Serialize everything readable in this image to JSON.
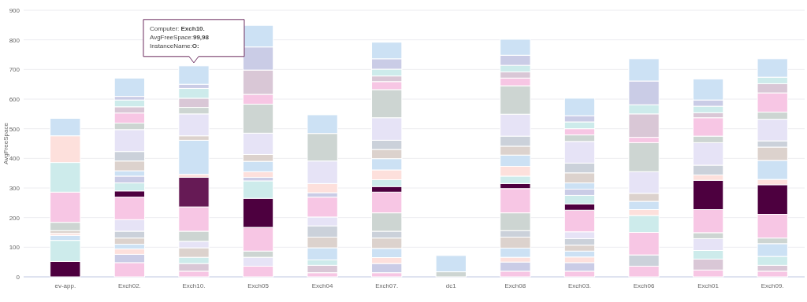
{
  "chart_data": {
    "type": "bar",
    "stacked": true,
    "ylabel": "AvgFreeSpace",
    "ylim": [
      0,
      900
    ],
    "yticks": [
      0,
      100,
      200,
      300,
      400,
      500,
      600,
      700,
      800,
      900
    ],
    "grid": "y",
    "categories": [
      "ev-app.",
      "Exch02.",
      "Exch10.",
      "Exch05",
      "Exch04",
      "Exch07.",
      "dc1",
      "Exch08",
      "Exch03.",
      "Exch06",
      "Exch01",
      "Exch09."
    ],
    "annotations": [
      "Computer: Exch10.",
      "AvgFreeSpace:99,98",
      "InstanceName:O:"
    ],
    "series": [
      {
        "values": [
          52,
          48,
          19,
          36,
          14,
          14,
          17,
          19,
          19,
          36,
          23,
          19
        ],
        "colors": [
          "#4d003f",
          "#f7c6e4",
          "#f7c6e4",
          "#f7c6e4",
          "#f7c6e4",
          "#f7c6e4",
          "#cdd5d2",
          "#f7c6e4",
          "#f7c6e4",
          "#f7c6e4",
          "#f7c6e4",
          "#f7c6e4"
        ]
      },
      {
        "values": [
          71,
          28,
          26,
          30,
          25,
          31,
          55,
          31,
          29,
          38,
          37,
          20
        ],
        "colors": [
          "#cdebeb",
          "#cacce6",
          "#d9c7d6",
          "#e6e3f6",
          "#d9c7d6",
          "#cacce6",
          "#cce1f4",
          "#cacce6",
          "#cacce6",
          "#cbd1da",
          "#d9c7d6",
          "#d9c7d6"
        ]
      },
      {
        "values": [
          17,
          18,
          21,
          21,
          18,
          20,
          null,
          16,
          19,
          76,
          29,
          30
        ],
        "colors": [
          "#cce1f4",
          "#fde0dc",
          "#cdebeb",
          "#cdd5d2",
          "#cdebeb",
          "#fde0dc",
          null,
          "#fde0dc",
          "#fde0dc",
          "#f7c6e4",
          "#cdebeb",
          "#cdebeb"
        ]
      },
      {
        "values": [
          7,
          16,
          32,
          80,
          41,
          31,
          null,
          31,
          20,
          57,
          40,
          43
        ],
        "colors": [
          "#fde0dc",
          "#cce1f4",
          "#dcd2cd",
          "#f7c6e4",
          "#cce1f4",
          "#cce1f4",
          null,
          "#cce1f4",
          "#cce1f4",
          "#cdebeb",
          "#e6e3f6",
          "#cce1f4"
        ]
      },
      {
        "values": [
          9,
          21,
          22,
          98,
          36,
          35,
          null,
          37,
          20,
          20,
          20,
          19
        ],
        "colors": [
          "#dcd2cd",
          "#dcd2cd",
          "#e6e3f6",
          "#4d003f",
          "#dcd2cd",
          "#dcd2cd",
          null,
          "#dcd2cd",
          "#dcd2cd",
          "#fde0dc",
          "#cdd5d2",
          "#cdd5d2"
        ]
      },
      {
        "values": [
          28,
          23,
          34,
          59,
          38,
          23,
          null,
          22,
          22,
          28,
          78,
          80
        ],
        "colors": [
          "#cdd5d2",
          "#cbd1da",
          "#cdd5d2",
          "#cdebeb",
          "#cbd1da",
          "#cbd1da",
          null,
          "#cbd1da",
          "#cbd1da",
          "#cce1f4",
          "#f7c6e4",
          "#f7c6e4"
        ]
      },
      {
        "values": [
          102,
          39,
          82,
          12,
          30,
          62,
          null,
          60,
          23,
          27,
          99,
          100
        ],
        "colors": [
          "#f7c6e4",
          "#e6e3f6",
          "#f7c6e4",
          "#cacce6",
          "#e6e3f6",
          "#cdd5d2",
          null,
          "#cdd5d2",
          "#e6e3f6",
          "#dcd2cd",
          "#4d003f",
          "#4d003f"
        ]
      },
      {
        "values": [
          100,
          76,
          99.98,
          19,
          67,
          70,
          null,
          82,
          73,
          73,
          18,
          18
        ],
        "colors": [
          "#cdebeb",
          "#f7c6e4",
          "#661a55",
          "#fde0dc",
          "#f7c6e4",
          "#f7c6e4",
          null,
          "#f7c6e4",
          "#f7c6e4",
          "#e6e3f6",
          "#fde0dc",
          "#fde0dc"
        ]
      },
      {
        "values": [
          90,
          21,
          10,
          35,
          15,
          19,
          null,
          17,
          21,
          98,
          33,
          64
        ],
        "colors": [
          "#fde0dc",
          "#4d003f",
          "#fde0dc",
          "#cce1f4",
          "#cacce6",
          "#4d003f",
          null,
          "#4d003f",
          "#4d003f",
          "#cdd5d2",
          "#cbd1da",
          "#cce1f4"
        ]
      },
      {
        "values": [
          59,
          27,
          115,
          23,
          31,
          23,
          null,
          25,
          29,
          18,
          76,
          45
        ],
        "colors": [
          "#cce1f4",
          "#cdebeb",
          "#cce1f4",
          "#dcd2cd",
          "#fde0dc",
          "#cdebeb",
          null,
          "#cdebeb",
          "#cdebeb",
          "#f7c6e4",
          "#e6e3f6",
          "#dcd2cd"
        ]
      },
      {
        "values": [
          null,
          23,
          15,
          72,
          76,
          33,
          null,
          33,
          21,
          79,
          22,
          21
        ],
        "colors": [
          null,
          "#cacce6",
          "#dcd2cd",
          "#e6e3f6",
          "#e6e3f6",
          "#fde0dc",
          null,
          "#fde0dc",
          "#cacce6",
          "#d9c7d6",
          "#cdd5d2",
          "#cbd1da"
        ]
      },
      {
        "values": [
          null,
          18,
          74,
          98,
          93,
          38,
          null,
          38,
          21,
          31,
          62,
          73
        ],
        "colors": [
          null,
          "#cce1f4",
          "#e6e3f6",
          "#cdd5d2",
          "#cdd5d2",
          "#cce1f4",
          null,
          "#cce1f4",
          "#cce1f4",
          "#cdebeb",
          "#f7c6e4",
          "#e6e3f6"
        ]
      },
      {
        "values": [
          null,
          33,
          22,
          33,
          63,
          31,
          null,
          30,
          34,
          80,
          17,
          24
        ],
        "colors": [
          null,
          "#dcd2cd",
          "#cdd5d2",
          "#f7c6e4",
          "#cce1f4",
          "#dcd2cd",
          null,
          "#dcd2cd",
          "#dcd2cd",
          "#cacce6",
          "#d9c7d6",
          "#cdd5d2"
        ]
      },
      {
        "values": [
          null,
          32,
          31,
          82,
          null,
          31,
          null,
          34,
          33,
          75,
          22,
          65
        ],
        "colors": [
          null,
          "#cbd1da",
          "#d9c7d6",
          "#d9c7d6",
          null,
          "#cbd1da",
          null,
          "#cbd1da",
          "#cbd1da",
          "#cce1f4",
          "#cdebeb",
          "#f7c6e4"
        ]
      },
      {
        "values": [
          null,
          74,
          33,
          78,
          null,
          76,
          null,
          74,
          73,
          null,
          21,
          31
        ],
        "colors": [
          null,
          "#e6e3f6",
          "#cdebeb",
          "#cacce6",
          null,
          "#e6e3f6",
          null,
          "#e6e3f6",
          "#e6e3f6",
          null,
          "#cacce6",
          "#d9c7d6"
        ]
      },
      {
        "values": [
          null,
          22,
          14,
          73,
          null,
          95,
          null,
          96,
          22,
          null,
          71,
          22
        ],
        "colors": [
          null,
          "#cdd5d2",
          "#cacce6",
          "#cce1f4",
          null,
          "#cdd5d2",
          null,
          "#cdd5d2",
          "#cdd5d2",
          null,
          "#cce1f4",
          "#cdebeb"
        ]
      },
      {
        "values": [
          null,
          34,
          62,
          null,
          null,
          27,
          null,
          26,
          21,
          null,
          null,
          62
        ],
        "colors": [
          null,
          "#f7c6e4",
          "#cce1f4",
          null,
          null,
          "#f7c6e4",
          null,
          "#f7c6e4",
          "#f7c6e4",
          null,
          null,
          "#cce1f4"
        ]
      },
      {
        "values": [
          null,
          21,
          null,
          null,
          null,
          19,
          null,
          21,
          23,
          null,
          null,
          null
        ],
        "colors": [
          null,
          "#d9c7d6",
          null,
          null,
          null,
          "#d9c7d6",
          null,
          "#d9c7d6",
          "#cdebeb",
          null,
          null,
          null
        ]
      },
      {
        "values": [
          null,
          23,
          null,
          null,
          null,
          23,
          null,
          22,
          21,
          null,
          null,
          null
        ],
        "colors": [
          null,
          "#cdebeb",
          null,
          null,
          null,
          "#cdebeb",
          null,
          "#cdebeb",
          "#cacce6",
          null,
          null,
          null
        ]
      },
      {
        "values": [
          null,
          12,
          null,
          null,
          null,
          35,
          null,
          34,
          59,
          null,
          null,
          null
        ],
        "colors": [
          null,
          "#cacce6",
          null,
          null,
          null,
          "#cacce6",
          null,
          "#cacce6",
          "#cce1f4",
          null,
          null,
          null
        ]
      },
      {
        "values": [
          null,
          62,
          null,
          null,
          null,
          56,
          null,
          54,
          null,
          null,
          null,
          null
        ],
        "colors": [
          null,
          "#cce1f4",
          null,
          null,
          null,
          "#cce1f4",
          null,
          "#cce1f4",
          null,
          null,
          null,
          null
        ]
      }
    ]
  }
}
